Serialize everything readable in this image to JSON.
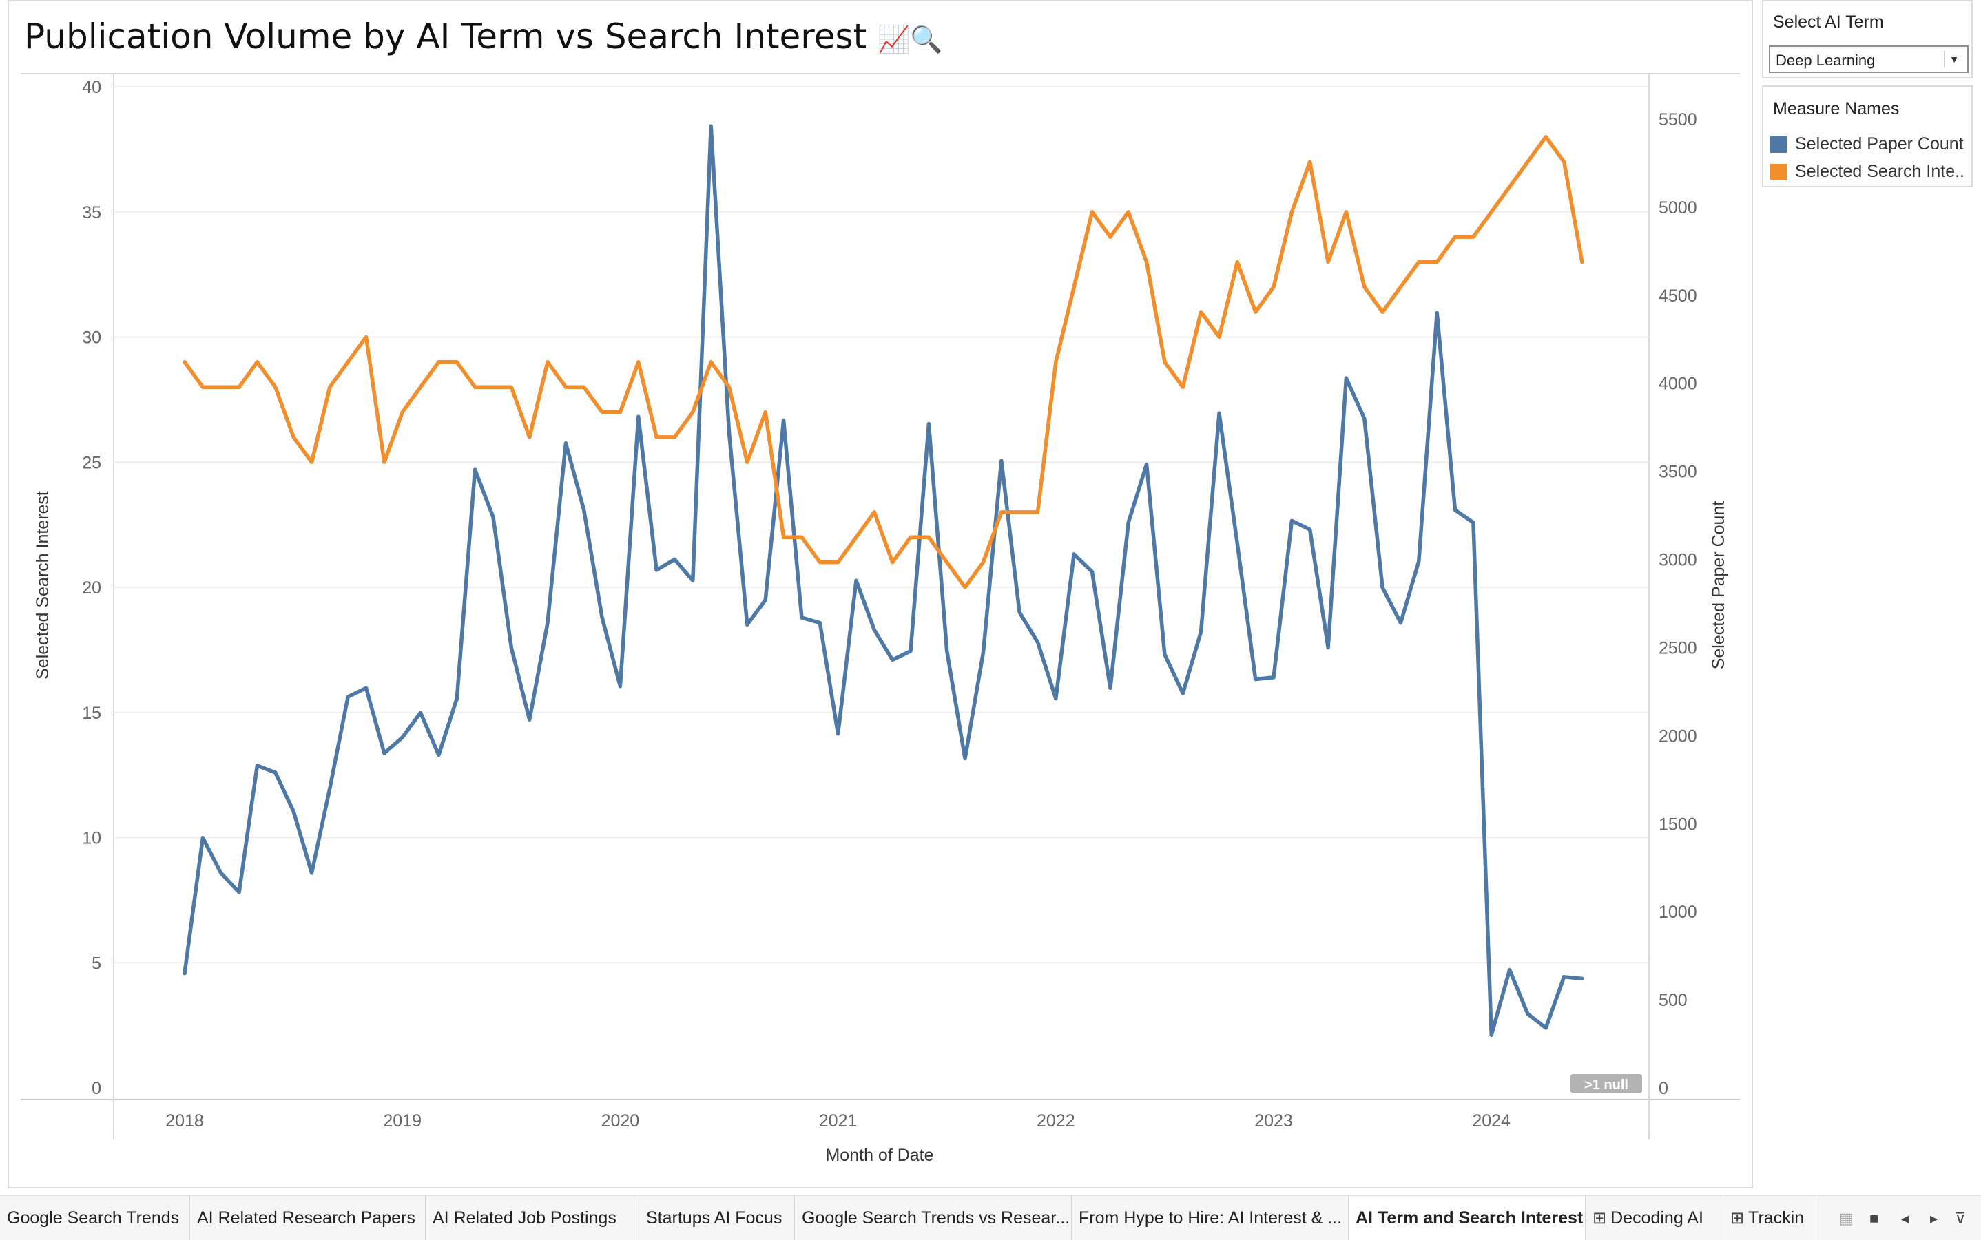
{
  "title": "Publication Volume by AI Term vs Search Interest",
  "title_icons": [
    "chart-increasing-emoji",
    "magnifier-emoji"
  ],
  "filter": {
    "label": "Select AI Term",
    "value": "Deep Learning"
  },
  "legend": {
    "title": "Measure Names",
    "items": [
      {
        "label": "Selected Paper Count",
        "color": "#4e79a7"
      },
      {
        "label": "Selected Search Inte..",
        "color": "#f28e2b"
      }
    ]
  },
  "null_badge": ">1 null",
  "tabs": [
    {
      "label": "Google Search Trends"
    },
    {
      "label": "AI Related Research Papers"
    },
    {
      "label": "AI Related Job Postings"
    },
    {
      "label": "Startups AI Focus"
    },
    {
      "label": "Google Search Trends vs Resear..."
    },
    {
      "label": "From Hype to Hire: AI Interest & ..."
    },
    {
      "label": "AI Term and Search Interest",
      "active": true
    },
    {
      "label": "Decoding AI",
      "icon": "grid-icon"
    },
    {
      "label": "Trackin",
      "icon": "grid-icon"
    }
  ],
  "chart_data": {
    "type": "line",
    "dual_axis": true,
    "xlabel": "Month of Date",
    "x_ticks": [
      "2018",
      "2019",
      "2020",
      "2021",
      "2022",
      "2023",
      "2024"
    ],
    "left_axis": {
      "label": "Selected Search Interest",
      "range": [
        0,
        40
      ],
      "ticks": [
        0,
        5,
        10,
        15,
        20,
        25,
        30,
        35,
        40
      ]
    },
    "right_axis": {
      "label": "Selected Paper Count",
      "range": [
        0,
        5700
      ],
      "ticks": [
        0,
        500,
        1000,
        1500,
        2000,
        2500,
        3000,
        3500,
        4000,
        4500,
        5000,
        5500
      ]
    },
    "grid": true,
    "x": [
      "2018-01",
      "2018-02",
      "2018-03",
      "2018-04",
      "2018-05",
      "2018-06",
      "2018-07",
      "2018-08",
      "2018-09",
      "2018-10",
      "2018-11",
      "2018-12",
      "2019-01",
      "2019-02",
      "2019-03",
      "2019-04",
      "2019-05",
      "2019-06",
      "2019-07",
      "2019-08",
      "2019-09",
      "2019-10",
      "2019-11",
      "2019-12",
      "2020-01",
      "2020-02",
      "2020-03",
      "2020-04",
      "2020-05",
      "2020-06",
      "2020-07",
      "2020-08",
      "2020-09",
      "2020-10",
      "2020-11",
      "2020-12",
      "2021-01",
      "2021-02",
      "2021-03",
      "2021-04",
      "2021-05",
      "2021-06",
      "2021-07",
      "2021-08",
      "2021-09",
      "2021-10",
      "2021-11",
      "2021-12",
      "2022-01",
      "2022-02",
      "2022-03",
      "2022-04",
      "2022-05",
      "2022-06",
      "2022-07",
      "2022-08",
      "2022-09",
      "2022-10",
      "2022-11",
      "2022-12",
      "2023-01",
      "2023-02",
      "2023-03",
      "2023-04",
      "2023-05",
      "2023-06",
      "2023-07",
      "2023-08",
      "2023-09",
      "2023-10",
      "2023-11",
      "2023-12",
      "2024-01",
      "2024-02",
      "2024-03",
      "2024-04",
      "2024-05",
      "2024-06"
    ],
    "series": [
      {
        "name": "Selected Paper Count",
        "axis": "right",
        "color": "#4e79a7",
        "values": [
          650,
          1420,
          1220,
          1110,
          1830,
          1790,
          1570,
          1220,
          1700,
          2220,
          2270,
          1900,
          1990,
          2130,
          1890,
          2210,
          3510,
          3240,
          2500,
          2090,
          2640,
          3660,
          3280,
          2670,
          2280,
          3810,
          2940,
          3000,
          2880,
          5460,
          3720,
          2630,
          2770,
          3790,
          2670,
          2640,
          2010,
          2880,
          2600,
          2430,
          2480,
          3770,
          2480,
          1870,
          2470,
          3560,
          2700,
          2530,
          2210,
          3030,
          2930,
          2270,
          3210,
          3540,
          2460,
          2240,
          2590,
          3830,
          3090,
          2320,
          2330,
          3220,
          3170,
          2500,
          4030,
          3800,
          2840,
          2640,
          2990,
          4400,
          3280,
          3210,
          300,
          670,
          420,
          340,
          630,
          620
        ]
      },
      {
        "name": "Selected Search Inte..",
        "axis": "left",
        "color": "#f28e2b",
        "values": [
          29,
          28,
          28,
          28,
          29,
          28,
          26,
          25,
          28,
          29,
          30,
          25,
          27,
          28,
          29,
          29,
          28,
          28,
          28,
          26,
          29,
          28,
          28,
          27,
          27,
          29,
          26,
          26,
          27,
          29,
          28,
          25,
          27,
          22,
          22,
          21,
          21,
          22,
          23,
          21,
          22,
          22,
          21,
          20,
          21,
          23,
          23,
          23,
          29,
          32,
          35,
          34,
          35,
          33,
          29,
          28,
          31,
          30,
          33,
          31,
          32,
          35,
          37,
          33,
          35,
          32,
          31,
          32,
          33,
          33,
          34,
          34,
          35,
          36,
          37,
          38,
          37,
          33
        ]
      }
    ]
  }
}
